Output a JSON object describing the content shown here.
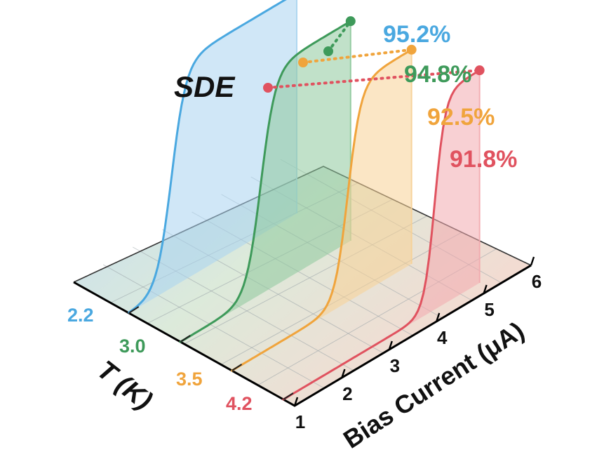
{
  "chart_data": {
    "type": "line",
    "title": "",
    "metric_label": "SDE",
    "xlabel": "Bias Current (μA)",
    "ylabel": "T (K)",
    "x_ticks": [
      1,
      2,
      3,
      4,
      5,
      6
    ],
    "xlim": [
      1,
      6
    ],
    "ylim": [
      0,
      1
    ],
    "grid": true,
    "series": [
      {
        "t": "2.2",
        "color": "#4aa8e0",
        "fill": "#a9d4f0",
        "max_label": "95.2%",
        "max_value": 0.952,
        "onset": 1.9,
        "width": 0.55,
        "end": 4.55
      },
      {
        "t": "3.0",
        "color": "#3e9a5a",
        "fill": "#8ec99d",
        "max_label": "94.8%",
        "max_value": 0.948,
        "onset": 2.7,
        "width": 0.55,
        "end": 4.6
      },
      {
        "t": "3.5",
        "color": "#f0a43c",
        "fill": "#f7d196",
        "max_label": "92.5%",
        "max_value": 0.925,
        "onset": 3.45,
        "width": 0.5,
        "end": 4.8
      },
      {
        "t": "4.2",
        "color": "#e0525f",
        "fill": "#f2a9ae",
        "max_label": "91.8%",
        "max_value": 0.918,
        "onset": 4.2,
        "width": 0.4,
        "end": 5.15
      }
    ]
  }
}
